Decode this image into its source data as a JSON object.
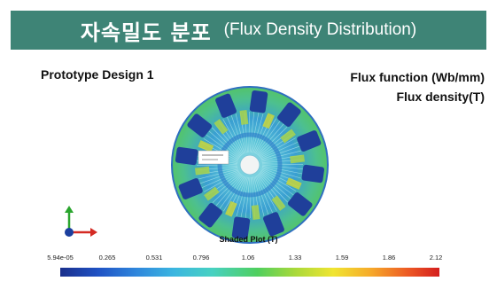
{
  "header": {
    "title_korean": "자속밀도 분포",
    "title_english": "(Flux Density Distribution)"
  },
  "labels": {
    "design": "Prototype Design 1",
    "flux_function": "Flux function (Wb/mm)",
    "flux_density": "Flux density(T)"
  },
  "colorbar": {
    "title": "Shaded Plot (T)",
    "ticks": [
      "5.94e-05",
      "0.265",
      "0.531",
      "0.796",
      "1.06",
      "1.33",
      "1.59",
      "1.86",
      "2.12"
    ]
  },
  "colors": {
    "banner": "#3e8476",
    "low": "#1a2f8c",
    "mid": "#4fcf5e",
    "high": "#d41e1e"
  }
}
